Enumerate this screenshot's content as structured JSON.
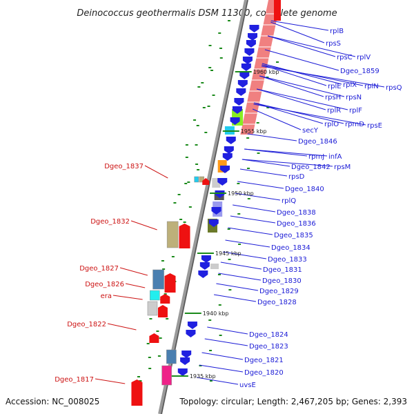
{
  "title": "Deinococcus geothermalis DSM 11300, complete genome",
  "footer": {
    "accession": "Accession: NC_008025",
    "topology": "Topology: circular; Length: 2,467,205 bp; Genes: 2,393"
  },
  "kbp_ticks": [
    "1960 kbp",
    "1955 kbp",
    "1950 kbp",
    "1945 kbp",
    "1940 kbp",
    "1935 kbp"
  ],
  "right_genes": [
    "rplB",
    "rpsS",
    "rpsC",
    "rplV",
    "Dgeo_1859",
    "rplE",
    "rplX",
    "rplN",
    "rpsQ",
    "rpsH",
    "rpsN",
    "rplR",
    "rplF",
    "rplO",
    "rpmD",
    "rpsE",
    "secY",
    "Dgeo_1846",
    "rpmJ",
    "infA",
    "Dgeo_1842",
    "rpsM",
    "rpsD",
    "Dgeo_1840",
    "rplQ",
    "Dgeo_1838",
    "Dgeo_1836",
    "Dgeo_1835",
    "Dgeo_1834",
    "Dgeo_1833",
    "Dgeo_1831",
    "Dgeo_1830",
    "Dgeo_1829",
    "Dgeo_1828",
    "Dgeo_1824",
    "Dgeo_1823",
    "Dgeo_1821",
    "Dgeo_1820",
    "uvsE"
  ],
  "left_genes": [
    "Dgeo_1837",
    "Dgeo_1832",
    "Dgeo_1827",
    "Dgeo_1826",
    "era",
    "Dgeo_1822",
    "Dgeo_1817"
  ],
  "colors": {
    "backbone": "#8a8a8a",
    "label_right": "#1a1ad6",
    "label_left": "#cc1111",
    "gene_blue": "#2020e0",
    "gene_red": "#ee1111",
    "gene_pink": "#f08080",
    "tick_green": "#1a8a1a"
  }
}
